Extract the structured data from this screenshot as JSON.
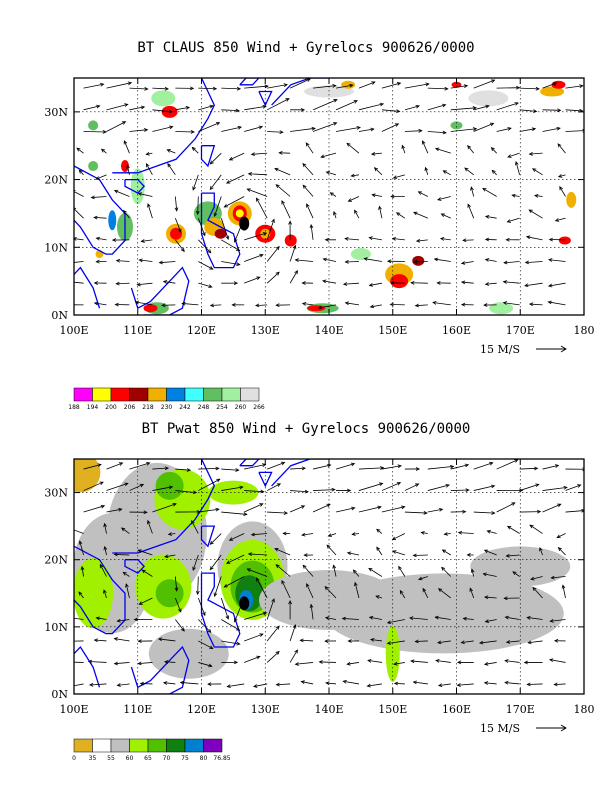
{
  "top_panel": {
    "title": "BT CLAUS 850 Wind + Gyrelocs 900626/0000",
    "lat_labels": [
      "0N",
      "10N",
      "20N",
      "30N"
    ],
    "lon_labels": [
      "100E",
      "110E",
      "120E",
      "130E",
      "140E",
      "150E",
      "160E",
      "170E",
      "180"
    ],
    "vector_scale_label": "15 M/S",
    "legend": {
      "labels": [
        "188",
        "194",
        "200",
        "206",
        "218",
        "230",
        "242",
        "248",
        "254",
        "260",
        "266"
      ],
      "colors": [
        "#ff00ff",
        "#ffff00",
        "#ff0000",
        "#a00000",
        "#f0b000",
        "#0080e0",
        "#40ffff",
        "#60c060",
        "#a0f0a0",
        "#e0e0e0"
      ]
    }
  },
  "bottom_panel": {
    "title": "BT Pwat 850 Wind + Gyrelocs 900626/0000",
    "lat_labels": [
      "0N",
      "10N",
      "20N",
      "30N"
    ],
    "lon_labels": [
      "100E",
      "110E",
      "120E",
      "130E",
      "140E",
      "150E",
      "160E",
      "170E",
      "180"
    ],
    "vector_scale_label": "15 M/S",
    "legend": {
      "labels": [
        "0",
        "35",
        "55",
        "60",
        "65",
        "70",
        "75",
        "80",
        "76.85"
      ],
      "colors": [
        "#e0b020",
        "#ffffff",
        "#c0c0c0",
        "#a0f000",
        "#50c000",
        "#108010",
        "#0080d0",
        "#8000c0"
      ]
    }
  }
}
